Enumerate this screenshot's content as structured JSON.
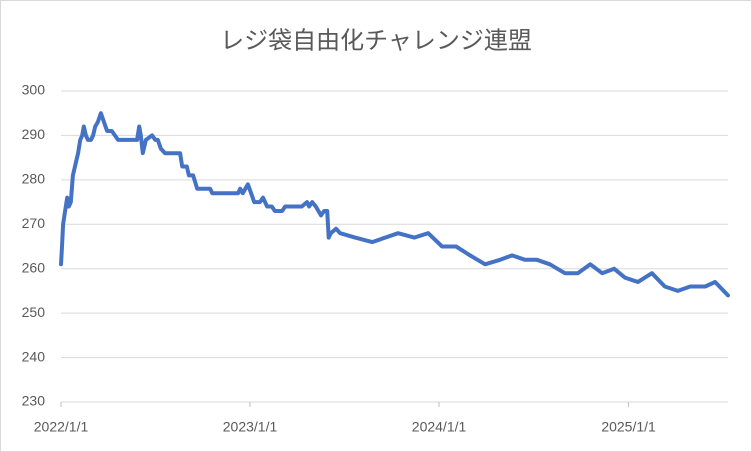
{
  "chart_data": {
    "type": "line",
    "title": "レジ袋自由化チャレンジ連盟",
    "x": [
      "2022/1/1",
      "2022/1/3",
      "2022/1/5",
      "2022/1/9",
      "2022/1/13",
      "2022/1/16",
      "2022/1/20",
      "2022/1/24",
      "2022/1/30",
      "2022/2/3",
      "2022/2/7",
      "2022/2/11",
      "2022/2/14",
      "2022/2/18",
      "2022/2/22",
      "2022/2/28",
      "2022/3/4",
      "2022/3/8",
      "2022/3/13",
      "2022/3/19",
      "2022/3/25",
      "2022/3/31",
      "2022/4/9",
      "2022/4/15",
      "2022/4/21",
      "2022/5/12",
      "2022/5/28",
      "2022/6/1",
      "2022/6/4",
      "2022/6/8",
      "2022/6/14",
      "2022/6/26",
      "2022/7/2",
      "2022/7/7",
      "2022/7/13",
      "2022/7/21",
      "2022/8/19",
      "2022/8/23",
      "2022/9/1",
      "2022/9/5",
      "2022/9/13",
      "2022/9/21",
      "2022/10/16",
      "2022/10/20",
      "2022/12/9",
      "2022/12/13",
      "2022/12/18",
      "2022/12/28",
      "2023/1/3",
      "2023/1/9",
      "2023/1/20",
      "2023/1/26",
      "2023/2/3",
      "2023/2/12",
      "2023/2/18",
      "2023/3/4",
      "2023/3/10",
      "2023/4/11",
      "2023/4/21",
      "2023/4/25",
      "2023/5/1",
      "2023/5/8",
      "2023/5/18",
      "2023/5/24",
      "2023/5/30",
      "2023/6/2",
      "2023/6/6",
      "2023/6/16",
      "2023/6/24",
      "2023/7/23",
      "2023/8/25",
      "2023/9/19",
      "2023/10/14",
      "2023/11/14",
      "2023/12/11",
      "2024/1/7",
      "2024/2/3",
      "2024/3/1",
      "2024/3/30",
      "2024/4/28",
      "2024/5/21",
      "2024/6/15",
      "2024/7/8",
      "2024/8/2",
      "2024/8/31",
      "2024/9/25",
      "2024/10/19",
      "2024/11/11",
      "2024/12/4",
      "2024/12/25",
      "2025/1/19",
      "2025/2/15",
      "2025/3/12",
      "2025/4/6",
      "2025/4/30",
      "2025/5/29",
      "2025/6/17",
      "2025/7/12"
    ],
    "values": [
      261,
      265,
      270,
      273,
      276,
      274,
      275,
      281,
      284,
      286,
      289,
      290,
      292,
      290,
      289,
      289,
      290,
      292,
      293,
      295,
      293,
      291,
      291,
      290,
      289,
      289,
      289,
      292,
      290,
      286,
      289,
      290,
      289,
      289,
      287,
      286,
      286,
      283,
      283,
      281,
      281,
      278,
      278,
      277,
      277,
      278,
      277,
      279,
      277,
      275,
      275,
      276,
      274,
      274,
      273,
      273,
      274,
      274,
      275,
      274,
      275,
      274,
      272,
      273,
      273,
      267,
      268,
      269,
      268,
      267,
      266,
      267,
      268,
      267,
      268,
      265,
      265,
      263,
      261,
      262,
      263,
      262,
      262,
      261,
      259,
      259,
      261,
      259,
      260,
      258,
      257,
      259,
      256,
      255,
      256,
      256,
      257,
      254
    ],
    "color": "#4472c4",
    "xlim": [
      "2022/1/1",
      "2025/7/12"
    ],
    "xticks": [
      "2022/1/1",
      "2023/1/1",
      "2024/1/1",
      "2025/1/1"
    ],
    "ylim": [
      230,
      300
    ],
    "yticks": [
      230,
      240,
      250,
      260,
      270,
      280,
      290,
      300
    ],
    "grid": true
  }
}
